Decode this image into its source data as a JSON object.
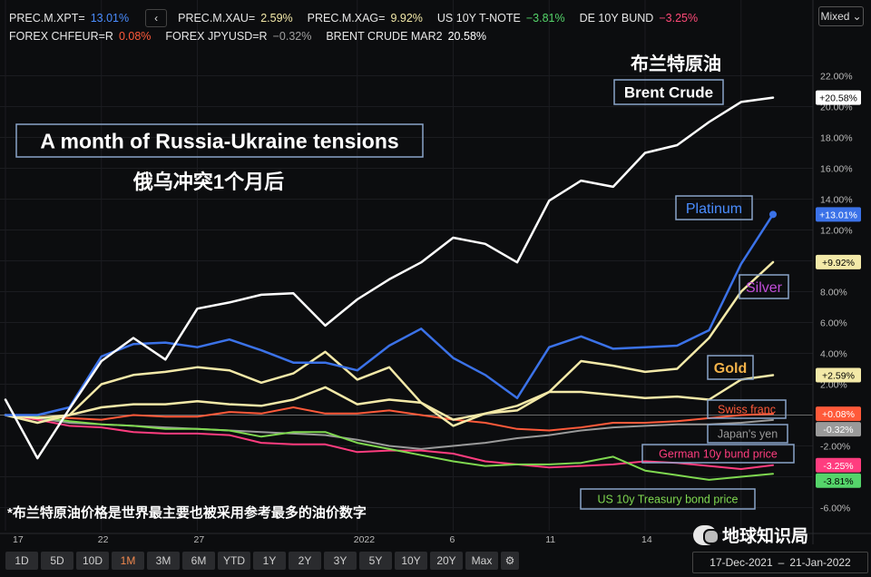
{
  "legend": {
    "row1": [
      {
        "label": "PREC.M.XPT=",
        "value": "13.01%",
        "color": "#4a8dff"
      },
      {
        "label": "PREC.M.XAU=",
        "value": "2.59%",
        "color": "#f3e9a8"
      },
      {
        "label": "PREC.M.XAG=",
        "value": "9.92%",
        "color": "#f3e9a8"
      },
      {
        "label": "US 10Y T-NOTE",
        "value": "−3.81%",
        "color": "#55d46a"
      },
      {
        "label": "DE 10Y BUND",
        "value": "−3.25%",
        "color": "#ff4a78"
      }
    ],
    "row2": [
      {
        "label": "FOREX CHFEUR=R",
        "value": "0.08%",
        "color": "#ff5a3a"
      },
      {
        "label": "FOREX JPYUSD=R",
        "value": "−0.32%",
        "color": "#a0a0a0"
      },
      {
        "label": "BRENT CRUDE MAR2",
        "value": "20.58%",
        "color": "#ffffff"
      }
    ],
    "nav_icon": "chevron-left-icon"
  },
  "scale_mode": "Mixed",
  "chart_data": {
    "type": "line",
    "x": [
      0,
      1,
      2,
      3,
      4,
      5,
      6,
      7,
      8,
      9,
      10,
      11,
      12,
      13,
      14,
      15,
      16,
      17,
      18,
      19,
      20,
      21,
      22,
      23,
      24
    ],
    "x_tick_labels": [
      {
        "x": 0,
        "label": "17"
      },
      {
        "x": 3,
        "label": "22"
      },
      {
        "x": 6,
        "label": "27"
      },
      {
        "x": 11,
        "label": "2022"
      },
      {
        "x": 14,
        "label": "6"
      },
      {
        "x": 17,
        "label": "11"
      },
      {
        "x": 20,
        "label": "14"
      },
      {
        "x": 23,
        "label": ""
      }
    ],
    "y_ticks": [
      "22.00%",
      "20.00%",
      "18.00%",
      "16.00%",
      "14.00%",
      "12.00%",
      "10.00%",
      "8.00%",
      "6.00%",
      "4.00%",
      "2.00%",
      "0.00%",
      "-2.00%",
      "-4.00%",
      "-6.00%"
    ],
    "y_tick_values": [
      22,
      20,
      18,
      16,
      14,
      12,
      10,
      8,
      6,
      4,
      2,
      0,
      -2,
      -4,
      -6
    ],
    "ylim": [
      -7.5,
      23.5
    ],
    "series": [
      {
        "name": "Brent Crude",
        "color": "#ffffff",
        "width": 2.5,
        "end_label": "+20.58%",
        "end_label_bg": "#ffffff",
        "end_label_fg": "#000000",
        "values": [
          1.0,
          -2.8,
          0.4,
          3.5,
          5.0,
          3.6,
          6.9,
          7.3,
          7.8,
          7.9,
          5.8,
          7.5,
          8.8,
          9.9,
          11.5,
          11.1,
          9.9,
          13.9,
          15.2,
          14.8,
          17.0,
          17.5,
          19.0,
          20.3,
          20.58
        ]
      },
      {
        "name": "Platinum",
        "color": "#3b72e8",
        "width": 2.5,
        "end_label": "+13.01%",
        "end_label_bg": "#3b72e8",
        "end_label_fg": "#ffffff",
        "end_dot": true,
        "values": [
          0.0,
          0.0,
          0.5,
          3.8,
          4.6,
          4.7,
          4.4,
          4.9,
          4.2,
          3.4,
          3.4,
          2.9,
          4.5,
          5.6,
          3.7,
          2.6,
          1.1,
          4.4,
          5.1,
          4.3,
          4.4,
          4.5,
          5.5,
          9.8,
          13.01
        ]
      },
      {
        "name": "Silver",
        "color": "#f3e9a8",
        "width": 2.5,
        "end_label": "+9.92%",
        "end_label_bg": "#f3e9a8",
        "end_label_fg": "#000000",
        "values": [
          0.0,
          -0.2,
          0.0,
          2.0,
          2.6,
          2.8,
          3.1,
          2.9,
          2.1,
          2.7,
          4.1,
          2.3,
          3.1,
          0.8,
          -0.7,
          0.1,
          0.3,
          1.5,
          3.5,
          3.2,
          2.8,
          3.0,
          5.0,
          8.0,
          9.92
        ]
      },
      {
        "name": "Gold",
        "color": "#f3e9a8",
        "width": 2.5,
        "end_label": "+2.59%",
        "end_label_bg": "#f3e9a8",
        "end_label_fg": "#000000",
        "values": [
          0.0,
          -0.5,
          0.0,
          0.5,
          0.7,
          0.7,
          0.9,
          0.7,
          0.6,
          1.0,
          1.8,
          0.7,
          1.0,
          0.8,
          -0.3,
          0.1,
          0.6,
          1.5,
          1.5,
          1.3,
          1.1,
          1.2,
          1.0,
          2.3,
          2.59
        ]
      },
      {
        "name": "Swiss franc",
        "color": "#ff5a3a",
        "width": 2,
        "end_label": "+0.08%",
        "end_label_bg": "#ff5a3a",
        "end_label_fg": "#ffffff",
        "values": [
          0.0,
          -0.1,
          -0.2,
          -0.3,
          0.0,
          -0.1,
          -0.1,
          0.2,
          0.1,
          0.5,
          0.1,
          0.1,
          0.3,
          0.0,
          -0.3,
          -0.5,
          -0.9,
          -1.0,
          -0.8,
          -0.5,
          -0.5,
          -0.4,
          -0.2,
          0.0,
          0.08
        ]
      },
      {
        "name": "Japan's yen",
        "color": "#9a9a9a",
        "width": 2,
        "end_label": "-0.32%",
        "end_label_bg": "#9a9a9a",
        "end_label_fg": "#ffffff",
        "values": [
          0.0,
          -0.2,
          -0.5,
          -0.6,
          -0.7,
          -0.8,
          -0.9,
          -1.0,
          -1.1,
          -1.2,
          -1.3,
          -1.6,
          -2.0,
          -2.2,
          -2.0,
          -1.8,
          -1.5,
          -1.3,
          -1.0,
          -0.8,
          -0.7,
          -0.6,
          -0.6,
          -0.5,
          -0.32
        ]
      },
      {
        "name": "German 10y bund price",
        "color": "#ff3d7f",
        "width": 2,
        "end_label": "-3.25%",
        "end_label_bg": "#ff3d7f",
        "end_label_fg": "#ffffff",
        "values": [
          0.0,
          -0.3,
          -0.7,
          -0.8,
          -1.1,
          -1.2,
          -1.2,
          -1.3,
          -1.8,
          -1.9,
          -1.9,
          -2.4,
          -2.3,
          -2.3,
          -2.5,
          -3.0,
          -3.2,
          -3.4,
          -3.3,
          -3.2,
          -3.0,
          -3.1,
          -3.3,
          -3.5,
          -3.25
        ]
      },
      {
        "name": "US 10y Treasury bond price",
        "color": "#7fd850",
        "width": 2,
        "end_label": "-3.81%",
        "end_label_bg": "#55d46a",
        "end_label_fg": "#000000",
        "values": [
          0.0,
          -0.1,
          -0.4,
          -0.6,
          -0.7,
          -0.9,
          -0.9,
          -1.0,
          -1.4,
          -1.1,
          -1.1,
          -1.8,
          -2.2,
          -2.6,
          -3.0,
          -3.3,
          -3.2,
          -3.2,
          -3.1,
          -2.7,
          -3.6,
          -3.9,
          -4.2,
          -4.0,
          -3.81
        ]
      }
    ]
  },
  "annotations": {
    "headline_en": "A month of Russia-Ukraine tensions",
    "headline_cn": "俄乌冲突1个月后",
    "brent_cn": "布兰特原油",
    "brent_en": "Brent Crude",
    "platinum": "Platinum",
    "silver": "Silver",
    "gold": "Gold",
    "swiss": "Swiss franc",
    "yen": "Japan's yen",
    "bund": "German 10y bund price",
    "treasury": "US 10y Treasury bond price",
    "footnote": "*布兰特原油价格是世界最主要也被采用参考最多的油价数字"
  },
  "toolbar": [
    "1D",
    "5D",
    "10D",
    "1M",
    "3M",
    "6M",
    "YTD",
    "1Y",
    "2Y",
    "3Y",
    "5Y",
    "10Y",
    "20Y",
    "Max"
  ],
  "toolbar_active": "1M",
  "settings_icon": "gear-icon",
  "date_range": {
    "from": "17-Dec-2021",
    "sep": "–",
    "to": "21-Jan-2022"
  },
  "watermark": "地球知识局"
}
